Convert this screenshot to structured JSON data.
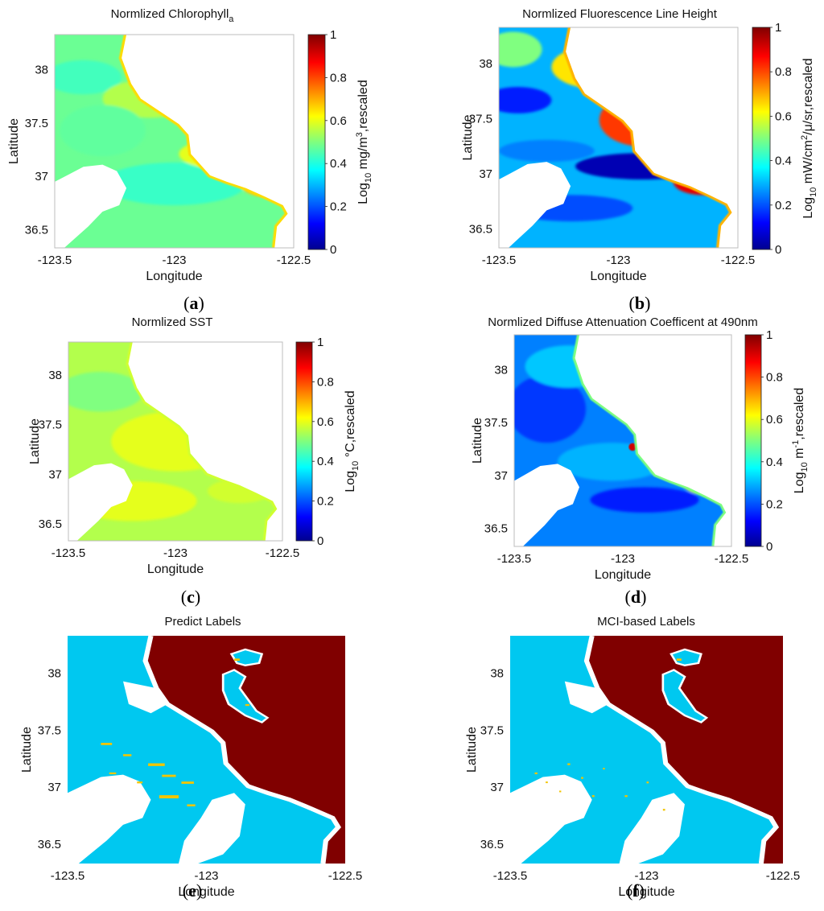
{
  "panels": [
    {
      "id": "a",
      "title": "Normlized Chlorophyll",
      "title_sub": "a",
      "xlabel": "Longitude",
      "ylabel": "Latitude",
      "colorbar_label": "Log",
      "colorbar_label_sub": "10",
      "colorbar_label_rest": " mg/m",
      "colorbar_label_sup": "3",
      "colorbar_label_tail": ",rescaled",
      "caption": "a",
      "x_ticks": [
        "-123.5",
        "-123",
        "-122.5"
      ],
      "y_ticks": [
        "38",
        "37.5",
        "37",
        "36.5"
      ],
      "cb_ticks": [
        "1",
        "0.8",
        "0.6",
        "0.4",
        "0.2",
        "0"
      ]
    },
    {
      "id": "b",
      "title": "Normlized Fluorescence Line Height",
      "xlabel": "Longitude",
      "ylabel": "Latitude",
      "colorbar_label": "Log",
      "colorbar_label_sub": "10",
      "colorbar_label_rest": " mW/cm",
      "colorbar_label_sup": "2",
      "colorbar_label_tail": "/μ/sr,rescaled",
      "caption": "b",
      "x_ticks": [
        "-123.5",
        "-123",
        "-122.5"
      ],
      "y_ticks": [
        "38",
        "37.5",
        "37",
        "36.5"
      ],
      "cb_ticks": [
        "1",
        "0.8",
        "0.6",
        "0.4",
        "0.2",
        "0"
      ]
    },
    {
      "id": "c",
      "title": "Normlized SST",
      "xlabel": "Longitude",
      "ylabel": "Latitude",
      "colorbar_label": "Log",
      "colorbar_label_sub": "10",
      "colorbar_label_rest": " °C,rescaled",
      "caption": "c",
      "x_ticks": [
        "-123.5",
        "-123",
        "-122.5"
      ],
      "y_ticks": [
        "38",
        "37.5",
        "37",
        "36.5"
      ],
      "cb_ticks": [
        "1",
        "0.8",
        "0.6",
        "0.4",
        "0.2",
        "0"
      ]
    },
    {
      "id": "d",
      "title": "Normlized Diffuse Attenuation Coefficent at 490nm",
      "xlabel": "Longitude",
      "ylabel": "Latitude",
      "colorbar_label": "Log",
      "colorbar_label_sub": "10",
      "colorbar_label_rest": " m",
      "colorbar_label_sup": "-1",
      "colorbar_label_tail": ",rescaled",
      "caption": "d",
      "x_ticks": [
        "-123.5",
        "-123",
        "-122.5"
      ],
      "y_ticks": [
        "38",
        "37.5",
        "37",
        "36.5"
      ],
      "cb_ticks": [
        "1",
        "0.8",
        "0.6",
        "0.4",
        "0.2",
        "0"
      ]
    },
    {
      "id": "e",
      "title": "Predict Labels",
      "xlabel": "Longitude",
      "ylabel": "Latitude",
      "caption": "e",
      "x_ticks": [
        "-123.5",
        "-123",
        "-122.5"
      ],
      "y_ticks": [
        "38",
        "37.5",
        "37",
        "36.5"
      ]
    },
    {
      "id": "f",
      "title": "MCI-based Labels",
      "xlabel": "Longitude",
      "ylabel": "Latitude",
      "caption": "f",
      "x_ticks": [
        "-123.5",
        "-123",
        "-122.5"
      ],
      "y_ticks": [
        "38",
        "37.5",
        "37",
        "36.5"
      ]
    }
  ],
  "chart_data": [
    {
      "type": "heatmap",
      "panel": "a",
      "title": "Normlized Chlorophyll_a",
      "xlabel": "Longitude",
      "ylabel": "Latitude",
      "xlim": [
        -123.5,
        -122.5
      ],
      "ylim": [
        36.33,
        38.33
      ],
      "colorbar_range": [
        0,
        1
      ],
      "colormap": "jet",
      "dominant_value_range": [
        0.4,
        0.6
      ]
    },
    {
      "type": "heatmap",
      "panel": "b",
      "title": "Normlized Fluorescence Line Height",
      "xlabel": "Longitude",
      "ylabel": "Latitude",
      "xlim": [
        -123.5,
        -122.5
      ],
      "ylim": [
        36.33,
        38.33
      ],
      "colorbar_range": [
        0,
        1
      ],
      "colormap": "jet",
      "dominant_value_range": [
        0.15,
        0.8
      ]
    },
    {
      "type": "heatmap",
      "panel": "c",
      "title": "Normlized SST",
      "xlabel": "Longitude",
      "ylabel": "Latitude",
      "xlim": [
        -123.5,
        -122.5
      ],
      "ylim": [
        36.33,
        38.33
      ],
      "colorbar_range": [
        0,
        1
      ],
      "colormap": "jet",
      "dominant_value_range": [
        0.5,
        0.6
      ]
    },
    {
      "type": "heatmap",
      "panel": "d",
      "title": "Normlized Diffuse Attenuation Coefficent at 490nm",
      "xlabel": "Longitude",
      "ylabel": "Latitude",
      "xlim": [
        -123.5,
        -122.5
      ],
      "ylim": [
        36.33,
        38.33
      ],
      "colorbar_range": [
        0,
        1
      ],
      "colormap": "jet",
      "dominant_value_range": [
        0.15,
        0.45
      ]
    },
    {
      "type": "heatmap",
      "panel": "e",
      "title": "Predict Labels",
      "xlabel": "Longitude",
      "ylabel": "Latitude",
      "xlim": [
        -123.5,
        -122.5
      ],
      "ylim": [
        36.33,
        38.33
      ],
      "classes": [
        "water",
        "bloom",
        "land",
        "no data"
      ]
    },
    {
      "type": "heatmap",
      "panel": "f",
      "title": "MCI-based Labels",
      "xlabel": "Longitude",
      "ylabel": "Latitude",
      "xlim": [
        -123.5,
        -122.5
      ],
      "ylim": [
        36.33,
        38.33
      ],
      "classes": [
        "water",
        "bloom",
        "land",
        "no data"
      ]
    }
  ],
  "colors": {
    "land": "#800000",
    "water_label": "#00c8f0",
    "bloom_label": "#f2c500",
    "nodata": "#ffffff",
    "jet_low": "#00008f",
    "jet_high": "#800000"
  }
}
